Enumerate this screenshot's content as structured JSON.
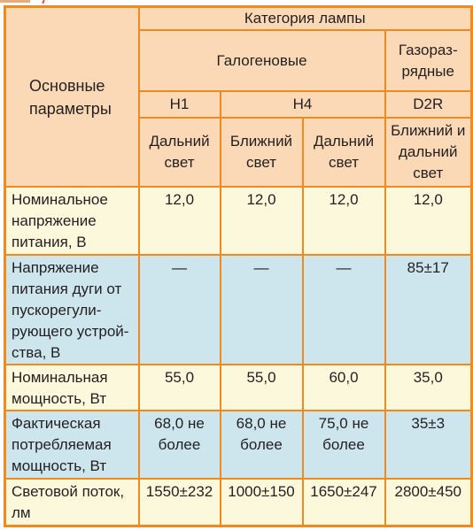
{
  "header": {
    "main_params": "Основные параметры",
    "category": "Категория лампы",
    "halogen": "Галогеновые",
    "gas_discharge": "Газораз-рядные",
    "types": [
      "H1",
      "H4",
      "D2R"
    ],
    "beams": [
      "Дальний свет",
      "Ближний свет",
      "Дальний свет",
      "Ближний и дальний свет"
    ]
  },
  "rows": [
    {
      "label": "Номинальное напряжение питания, В",
      "values": [
        "12,0",
        "12,0",
        "12,0",
        "12,0"
      ]
    },
    {
      "label": "Напряжение питания дуги от пускорегули-рующего устрой-ства, В",
      "values": [
        "—",
        "—",
        "—",
        "85±17"
      ]
    },
    {
      "label": "Номинальная мощность, Вт",
      "values": [
        "55,0",
        "55,0",
        "60,0",
        "35,0"
      ]
    },
    {
      "label": "Фактическая потребляемая мощность, Вт",
      "values": [
        "68,0 не более",
        "68,0 не более",
        "75,0 не более",
        "35±3"
      ]
    },
    {
      "label": "Световой поток, лм",
      "values": [
        "1550±232",
        "1000±150",
        "1650±247",
        "2800±450"
      ]
    }
  ],
  "colors": {
    "border": "#ee8a1f",
    "header_bg": "#fbd9b6",
    "row_yellow": "#fcf8db",
    "row_blue": "#cde6ee"
  }
}
